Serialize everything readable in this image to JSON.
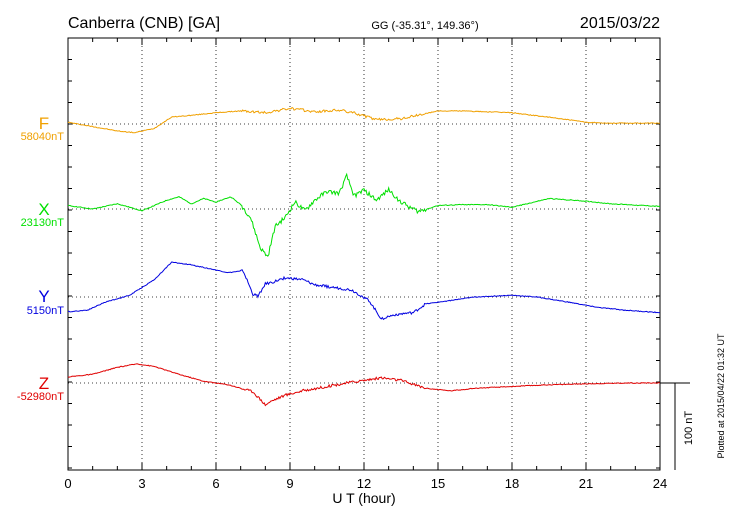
{
  "header": {
    "station": "Canberra (CNB)  [GA]",
    "coords": "GG (-35.31°, 149.36°)",
    "date": "2015/03/22"
  },
  "plotted_note": "Plotted at 2015/04/22 01:32 UT",
  "scale_bar_label": "100 nT",
  "chart_data": {
    "type": "line",
    "title": "Canberra (CNB)  [GA]",
    "xlabel": "U T (hour)",
    "xlim": [
      0,
      24
    ],
    "x_ticks": [
      0,
      3,
      6,
      9,
      12,
      15,
      18,
      21,
      24
    ],
    "x_tick_labels": [
      "0",
      "3",
      "6",
      "9",
      "12",
      "15",
      "18",
      "21",
      "24"
    ],
    "y_unit": "nT",
    "scale_bar_nT": 100,
    "grid": true,
    "series": [
      {
        "name": "F",
        "baseline_label": "58040nT",
        "baseline_nT": 58040,
        "color": "#f0a000",
        "points": [
          [
            0,
            2
          ],
          [
            1,
            -3
          ],
          [
            2,
            -8
          ],
          [
            2.7,
            -10
          ],
          [
            3.5,
            -5
          ],
          [
            4.2,
            8
          ],
          [
            5,
            10
          ],
          [
            6,
            13
          ],
          [
            7,
            15
          ],
          [
            8,
            13
          ],
          [
            9,
            18
          ],
          [
            10,
            14
          ],
          [
            11,
            16
          ],
          [
            11.7,
            12
          ],
          [
            12.5,
            5
          ],
          [
            13.5,
            6
          ],
          [
            14.5,
            12
          ],
          [
            15,
            15
          ],
          [
            16,
            15
          ],
          [
            18,
            13
          ],
          [
            20,
            6
          ],
          [
            21,
            2
          ],
          [
            22,
            1
          ],
          [
            24,
            1
          ]
        ]
      },
      {
        "name": "X",
        "baseline_label": "23130nT",
        "baseline_nT": 23130,
        "color": "#00e000",
        "points": [
          [
            0,
            4
          ],
          [
            1,
            0
          ],
          [
            2,
            6
          ],
          [
            3,
            -2
          ],
          [
            4,
            10
          ],
          [
            4.5,
            14
          ],
          [
            5,
            6
          ],
          [
            5.5,
            12
          ],
          [
            6,
            8
          ],
          [
            6.6,
            14
          ],
          [
            7,
            5
          ],
          [
            7.4,
            -10
          ],
          [
            7.8,
            -45
          ],
          [
            8.1,
            -55
          ],
          [
            8.4,
            -20
          ],
          [
            8.8,
            -10
          ],
          [
            9.2,
            8
          ],
          [
            9.6,
            -2
          ],
          [
            10,
            10
          ],
          [
            10.5,
            20
          ],
          [
            11,
            18
          ],
          [
            11.3,
            38
          ],
          [
            11.6,
            15
          ],
          [
            12,
            22
          ],
          [
            12.5,
            10
          ],
          [
            13,
            22
          ],
          [
            13.5,
            8
          ],
          [
            14.2,
            -3
          ],
          [
            15,
            4
          ],
          [
            16,
            5
          ],
          [
            17,
            5
          ],
          [
            18,
            2
          ],
          [
            19.5,
            12
          ],
          [
            21,
            9
          ],
          [
            22,
            6
          ],
          [
            24,
            3
          ]
        ]
      },
      {
        "name": "Y",
        "baseline_label": "5150nT",
        "baseline_nT": 5150,
        "color": "#0000e0",
        "points": [
          [
            0,
            -17
          ],
          [
            0.8,
            -15
          ],
          [
            1.5,
            -6
          ],
          [
            2.5,
            2
          ],
          [
            3.5,
            20
          ],
          [
            4.2,
            40
          ],
          [
            5,
            37
          ],
          [
            6,
            31
          ],
          [
            6.5,
            28
          ],
          [
            7.1,
            30
          ],
          [
            7.5,
            3
          ],
          [
            7.7,
            1
          ],
          [
            8,
            15
          ],
          [
            8.3,
            17
          ],
          [
            8.8,
            22
          ],
          [
            9.5,
            20
          ],
          [
            10,
            14
          ],
          [
            11,
            10
          ],
          [
            11.5,
            8
          ],
          [
            12.2,
            -4
          ],
          [
            12.7,
            -25
          ],
          [
            13.3,
            -20
          ],
          [
            14,
            -18
          ],
          [
            14.5,
            -8
          ],
          [
            15.5,
            -4
          ],
          [
            16.5,
            0
          ],
          [
            18,
            2
          ],
          [
            19,
            0
          ],
          [
            20.3,
            -6
          ],
          [
            21.5,
            -12
          ],
          [
            22.5,
            -15
          ],
          [
            23.5,
            -17
          ],
          [
            24,
            -18
          ]
        ]
      },
      {
        "name": "Z",
        "baseline_label": "-52980nT",
        "baseline_nT": -52980,
        "color": "#e00000",
        "points": [
          [
            0,
            7
          ],
          [
            1,
            10
          ],
          [
            2,
            18
          ],
          [
            2.8,
            22
          ],
          [
            3.5,
            19
          ],
          [
            4.5,
            10
          ],
          [
            5.5,
            2
          ],
          [
            6.5,
            -2
          ],
          [
            7.5,
            -10
          ],
          [
            8,
            -25
          ],
          [
            8.3,
            -20
          ],
          [
            8.8,
            -14
          ],
          [
            9.5,
            -9
          ],
          [
            10.5,
            -4
          ],
          [
            11.5,
            1
          ],
          [
            12.7,
            6
          ],
          [
            13.5,
            3
          ],
          [
            14.5,
            -6
          ],
          [
            15.5,
            -9
          ],
          [
            16.5,
            -6
          ],
          [
            18,
            -4
          ],
          [
            19.5,
            -2
          ],
          [
            21,
            -1
          ],
          [
            22.5,
            0
          ],
          [
            24,
            0
          ]
        ]
      }
    ]
  }
}
